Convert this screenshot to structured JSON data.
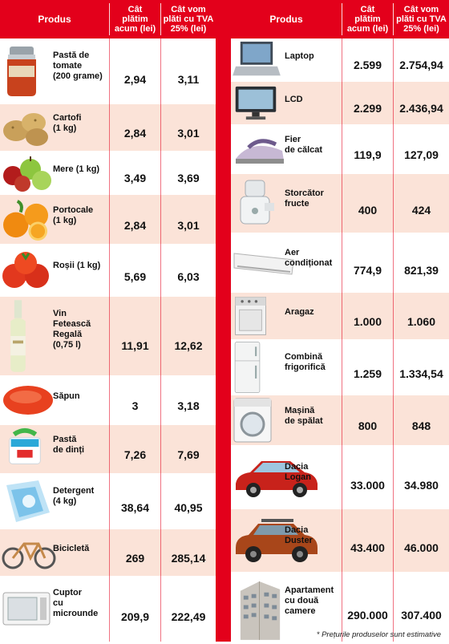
{
  "header": {
    "product": "Produs",
    "now": "Cât\nplătim\nacum (lei)",
    "vat": "Cât vom\nplăti cu TVA\n25% (lei)"
  },
  "left_table": {
    "rows": [
      {
        "name": "Pastă de\ntomate\n(200 grame)",
        "now": "2,94",
        "vat": "3,11",
        "icon": "tomato-paste-jar-icon"
      },
      {
        "name": "Cartofi\n(1 kg)",
        "now": "2,84",
        "vat": "3,01",
        "icon": "potatoes-icon"
      },
      {
        "name": "Mere (1 kg)",
        "now": "3,49",
        "vat": "3,69",
        "icon": "apples-icon"
      },
      {
        "name": "Portocale\n(1 kg)",
        "now": "2,84",
        "vat": "3,01",
        "icon": "oranges-icon"
      },
      {
        "name": "Roșii (1 kg)",
        "now": "5,69",
        "vat": "6,03",
        "icon": "tomatoes-icon"
      },
      {
        "name": "Vin\nFetească\nRegală\n(0,75 l)",
        "now": "11,91",
        "vat": "12,62",
        "icon": "wine-bottle-icon"
      },
      {
        "name": "Săpun",
        "now": "3",
        "vat": "3,18",
        "icon": "soap-bar-icon"
      },
      {
        "name": "Pastă\nde dinți",
        "now": "7,26",
        "vat": "7,69",
        "icon": "toothpaste-icon"
      },
      {
        "name": "Detergent\n(4 kg)",
        "now": "38,64",
        "vat": "40,95",
        "icon": "detergent-icon"
      },
      {
        "name": "Bicicletă",
        "now": "269",
        "vat": "285,14",
        "icon": "bicycle-icon"
      },
      {
        "name": "Cuptor\ncu\nmicrounde",
        "now": "209,9",
        "vat": "222,49",
        "icon": "microwave-icon"
      }
    ]
  },
  "right_table": {
    "rows": [
      {
        "name": "Laptop",
        "now": "2.599",
        "vat": "2.754,94",
        "icon": "laptop-icon"
      },
      {
        "name": "LCD",
        "now": "2.299",
        "vat": "2.436,94",
        "icon": "lcd-tv-icon"
      },
      {
        "name": "Fier\nde călcat",
        "now": "119,9",
        "vat": "127,09",
        "icon": "clothes-iron-icon"
      },
      {
        "name": "Storcător\nfructe",
        "now": "400",
        "vat": "424",
        "icon": "juicer-icon"
      },
      {
        "name": "Aer\ncondiționat",
        "now": "774,9",
        "vat": "821,39",
        "icon": "air-conditioner-icon"
      },
      {
        "name": "Aragaz",
        "now": "1.000",
        "vat": "1.060",
        "icon": "gas-stove-icon"
      },
      {
        "name": "Combină\nfrigorifică",
        "now": "1.259",
        "vat": "1.334,54",
        "icon": "fridge-icon"
      },
      {
        "name": "Mașină\nde spălat",
        "now": "800",
        "vat": "848",
        "icon": "washing-machine-icon"
      },
      {
        "name": "Dacia\nLogan",
        "now": "33.000",
        "vat": "34.980",
        "icon": "car-logan-icon"
      },
      {
        "name": "Dacia\nDuster",
        "now": "43.400",
        "vat": "46.000",
        "icon": "car-duster-icon"
      },
      {
        "name": "Apartament\ncu două\ncamere",
        "now": "290.000",
        "vat": "307.400",
        "icon": "apartment-building-icon"
      }
    ]
  },
  "footnote": "* Prețurile produselor sunt estimative",
  "colors": {
    "accent": "#e3001b",
    "stripe": "#fbe3d8",
    "text": "#111111"
  }
}
